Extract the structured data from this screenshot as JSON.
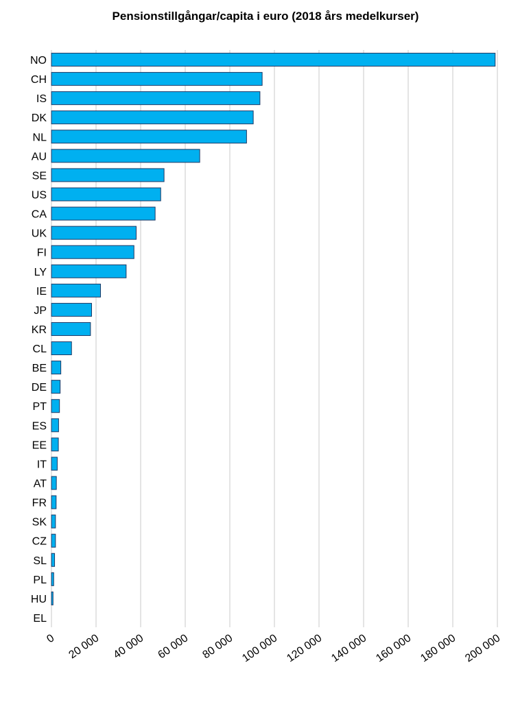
{
  "chart_data": {
    "type": "bar",
    "orientation": "horizontal",
    "title": "Pensionstillgångar/capita i euro (2018 års medelkurser)",
    "xlabel": "",
    "ylabel": "",
    "xlim": [
      0,
      200000
    ],
    "x_ticks": [
      0,
      20000,
      40000,
      60000,
      80000,
      100000,
      120000,
      140000,
      160000,
      180000,
      200000
    ],
    "x_tick_labels": [
      "0",
      "20 000",
      "40 000",
      "60 000",
      "80 000",
      "100 000",
      "120 000",
      "140 000",
      "160 000",
      "180 000",
      "200 000"
    ],
    "grid": "vertical",
    "legend": "none",
    "bar_color": "#00B0F0",
    "bar_edge_color": "#1F3864",
    "categories": [
      "NO",
      "CH",
      "IS",
      "DK",
      "NL",
      "AU",
      "SE",
      "US",
      "CA",
      "UK",
      "FI",
      "LY",
      "IE",
      "JP",
      "KR",
      "CL",
      "BE",
      "DE",
      "PT",
      "ES",
      "EE",
      "IT",
      "AT",
      "FR",
      "SK",
      "CZ",
      "SL",
      "PL",
      "HU",
      "EL"
    ],
    "values": [
      199000,
      94500,
      93500,
      90500,
      87500,
      66500,
      50500,
      49000,
      46500,
      38000,
      37000,
      33500,
      22000,
      18000,
      17500,
      9000,
      4200,
      3900,
      3600,
      3200,
      3100,
      2600,
      2200,
      2100,
      1800,
      1800,
      1400,
      1000,
      700,
      0
    ]
  }
}
